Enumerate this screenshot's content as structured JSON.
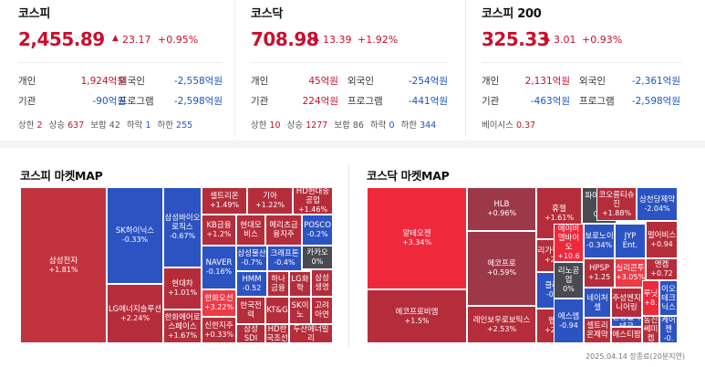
{
  "indices": [
    {
      "title": "코스피",
      "price": "2,455.89",
      "change": "23.17",
      "change_pct": "+0.95%",
      "investors": [
        {
          "l1": "개인",
          "v1": "1,924억원",
          "c1": "up",
          "l2": "외국인",
          "v2": "-2,558억원",
          "c2": "dn"
        },
        {
          "l1": "기관",
          "v1": "-90억원",
          "c1": "dn",
          "l2": "프로그램",
          "v2": "-2,598억원",
          "c2": "dn"
        }
      ],
      "stats": [
        {
          "label": "상한",
          "value": "2",
          "cls": "up"
        },
        {
          "label": "상승",
          "value": "637",
          "cls": "up"
        },
        {
          "label": "보합",
          "value": "42",
          "cls": ""
        },
        {
          "label": "하락",
          "value": "1",
          "cls": "dn"
        },
        {
          "label": "하한",
          "value": "255",
          "cls": "dn"
        }
      ]
    },
    {
      "title": "코스닥",
      "price": "708.98",
      "change": "13.39",
      "change_pct": "+1.92%",
      "investors": [
        {
          "l1": "개인",
          "v1": "45억원",
          "c1": "up",
          "l2": "외국인",
          "v2": "-254억원",
          "c2": "dn"
        },
        {
          "l1": "기관",
          "v1": "224억원",
          "c1": "up",
          "l2": "프로그램",
          "v2": "-441억원",
          "c2": "dn"
        }
      ],
      "stats": [
        {
          "label": "상한",
          "value": "10",
          "cls": "up"
        },
        {
          "label": "상승",
          "value": "1277",
          "cls": "up"
        },
        {
          "label": "보합",
          "value": "86",
          "cls": ""
        },
        {
          "label": "하락",
          "value": "0",
          "cls": "dn"
        },
        {
          "label": "하한",
          "value": "344",
          "cls": "dn"
        }
      ]
    },
    {
      "title": "코스피 200",
      "price": "325.33",
      "change": "3.01",
      "change_pct": "+0.93%",
      "investors": [
        {
          "l1": "개인",
          "v1": "2,131억원",
          "c1": "up",
          "l2": "외국인",
          "v2": "-2,361억원",
          "c2": "dn"
        },
        {
          "l1": "기관",
          "v1": "-463억원",
          "c1": "dn",
          "l2": "프로그램",
          "v2": "-2,598억원",
          "c2": "dn"
        }
      ],
      "stats": [
        {
          "label": "베이시스",
          "value": "0.37",
          "cls": "up"
        }
      ]
    }
  ],
  "kospi_map": {
    "title": "코스피 마켓MAP",
    "cells": [
      {
        "name": "삼성전자",
        "pct": "+1.81%",
        "cls": "r1"
      },
      {
        "name": "SK하이닉스",
        "pct": "-0.33%",
        "cls": "b1"
      },
      {
        "name": "LG에너지솔루션",
        "pct": "+2.24%",
        "cls": "r2"
      },
      {
        "name": "삼성바이오로직스",
        "pct": "-0.67%",
        "cls": "b1"
      },
      {
        "name": "현대차",
        "pct": "+1.01%",
        "cls": "r2"
      },
      {
        "name": "한화에어로스페이스",
        "pct": "+1.67%",
        "cls": "r2"
      },
      {
        "name": "셀트리온",
        "pct": "+1.49%",
        "cls": "r2"
      },
      {
        "name": "기아",
        "pct": "+1.22%",
        "cls": "r2"
      },
      {
        "name": "HD현대중공업",
        "pct": "+1.46%",
        "cls": "r2"
      },
      {
        "name": "KB금융",
        "pct": "+1.2%",
        "cls": "r2"
      },
      {
        "name": "현대모비스",
        "pct": "",
        "cls": "r2"
      },
      {
        "name": "메리츠금융지주",
        "pct": "",
        "cls": "r2"
      },
      {
        "name": "POSCO",
        "pct": "-0.2%",
        "cls": "b1"
      },
      {
        "name": "삼성물산",
        "pct": "-0.7%",
        "cls": "b1"
      },
      {
        "name": "크래프톤",
        "pct": "-0.4%",
        "cls": "b1"
      },
      {
        "name": "카카오",
        "pct": "0%",
        "cls": "g1"
      },
      {
        "name": "NAVER",
        "pct": "-0.16%",
        "cls": "b1"
      },
      {
        "name": "HMM",
        "pct": "-0.52",
        "cls": "b1"
      },
      {
        "name": "하나금융",
        "pct": "",
        "cls": "r2"
      },
      {
        "name": "LG화학",
        "pct": "",
        "cls": "r2"
      },
      {
        "name": "삼성생명",
        "pct": "",
        "cls": "r2"
      },
      {
        "name": "한화오션",
        "pct": "+3.22%",
        "cls": "r4"
      },
      {
        "name": "한국전력",
        "pct": "",
        "cls": "r2"
      },
      {
        "name": "SK이노",
        "pct": "",
        "cls": "r2"
      },
      {
        "name": "고려아연",
        "pct": "",
        "cls": "r2"
      },
      {
        "name": "신한지주",
        "pct": "+0.33%",
        "cls": "r2"
      },
      {
        "name": "삼성SDI",
        "pct": "",
        "cls": "r2"
      },
      {
        "name": "HD한국조선",
        "pct": "",
        "cls": "r2"
      },
      {
        "name": "두산에너빌리",
        "pct": "",
        "cls": "r2"
      },
      {
        "name": "KT&G",
        "pct": "",
        "cls": "r2"
      }
    ]
  },
  "kosdaq_map": {
    "title": "코스닥 마켓MAP",
    "cells": [
      {
        "name": "알테오젠",
        "pct": "+3.34%",
        "cls": "rb"
      },
      {
        "name": "에코프로비엠",
        "pct": "+1.5%",
        "cls": "r2"
      },
      {
        "name": "HLB",
        "pct": "+0.96%",
        "cls": "m1"
      },
      {
        "name": "에코프로",
        "pct": "+0.59%",
        "cls": "m1"
      },
      {
        "name": "레인보우로보틱스",
        "pct": "+2.53%",
        "cls": "r2"
      },
      {
        "name": "휴젤",
        "pct": "+1.61%",
        "cls": "r2"
      },
      {
        "name": "리가켐바이오",
        "pct": "+2.78%",
        "cls": "r2"
      },
      {
        "name": "클래시스",
        "pct": "-0.16%",
        "cls": "b1"
      },
      {
        "name": "펩트론",
        "pct": "+2.19%",
        "cls": "r2"
      },
      {
        "name": "파마리서치",
        "pct": "0%",
        "cls": "g1"
      },
      {
        "name": "에이비엘바이오",
        "pct": "+10.6",
        "cls": "rb"
      },
      {
        "name": "리노공업",
        "pct": "0%",
        "cls": "g1"
      },
      {
        "name": "에스엠",
        "pct": "-0.94",
        "cls": "b1"
      },
      {
        "name": "코오롱티슈진",
        "pct": "+1.88%",
        "cls": "r2"
      },
      {
        "name": "삼천당제약",
        "pct": "-2.04%",
        "cls": "b1"
      },
      {
        "name": "보로노이",
        "pct": "-0.34%",
        "cls": "b1"
      },
      {
        "name": "JYP Ent.",
        "pct": "",
        "cls": "b1"
      },
      {
        "name": "펄어비스",
        "pct": "+0.94",
        "cls": "r2"
      },
      {
        "name": "HPSP",
        "pct": "+1.25",
        "cls": "r2"
      },
      {
        "name": "실리콘투",
        "pct": "+3.05%",
        "cls": "r4"
      },
      {
        "name": "엔켐",
        "pct": "+0.72",
        "cls": "r2"
      },
      {
        "name": "네이처셀",
        "pct": "",
        "cls": "b1"
      },
      {
        "name": "주성엔지니어링",
        "pct": "",
        "cls": "r2"
      },
      {
        "name": "루닛",
        "pct": "+8.",
        "cls": "rb"
      },
      {
        "name": "이오테크닉스",
        "pct": "",
        "cls": "b1"
      },
      {
        "name": "셀트리온제약",
        "pct": "",
        "cls": "r2"
      },
      {
        "name": "신성델타테크",
        "pct": "",
        "cls": "b1"
      },
      {
        "name": "에스티팜",
        "pct": "",
        "cls": "r2"
      },
      {
        "name": "동진쎄미켐",
        "pct": "",
        "cls": "r2"
      },
      {
        "name": "케어젠",
        "pct": "-0.",
        "cls": "b1"
      }
    ]
  },
  "footer": "2025.04.14 장종료(20분지연)"
}
